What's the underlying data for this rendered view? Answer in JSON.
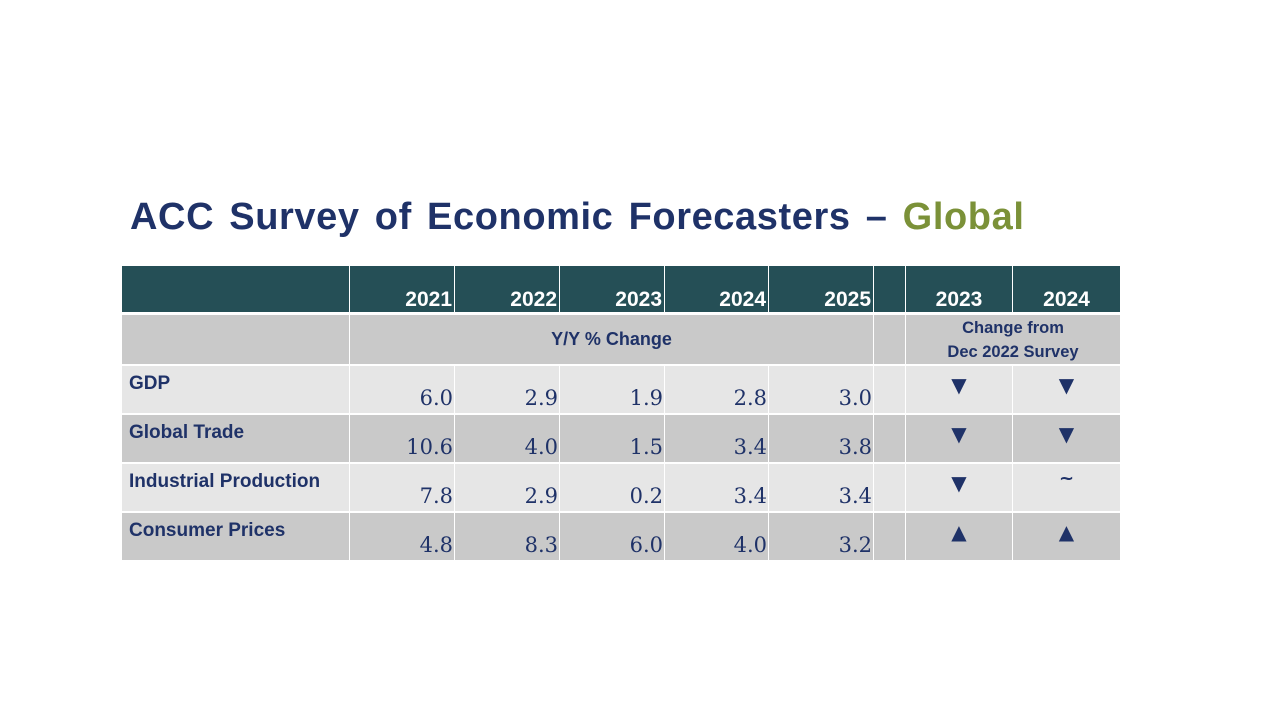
{
  "title": {
    "main": "ACC Survey of Economic Forecasters – ",
    "accent": "Global"
  },
  "colors": {
    "title": "#1f3268",
    "accent": "#7b9138",
    "header_bg": "#254f56",
    "row_light": "#e6e6e6",
    "row_dark": "#c9c9c9"
  },
  "table": {
    "years": [
      "2021",
      "2022",
      "2023",
      "2024",
      "2025"
    ],
    "change_years": [
      "2023",
      "2024"
    ],
    "yoy_label": "Y/Y % Change",
    "change_label_line1": "Change from",
    "change_label_line2": "Dec 2022 Survey",
    "rows": [
      {
        "label": "GDP",
        "values": [
          "6.0",
          "2.9",
          "1.9",
          "2.8",
          "3.0"
        ],
        "changes": [
          "down-triangle-icon",
          "down-triangle-icon"
        ],
        "change_glyphs": [
          "▼",
          "▼"
        ]
      },
      {
        "label": "Global Trade",
        "values": [
          "10.6",
          "4.0",
          "1.5",
          "3.4",
          "3.8"
        ],
        "changes": [
          "down-triangle-icon",
          "down-triangle-icon"
        ],
        "change_glyphs": [
          "▼",
          "▼"
        ]
      },
      {
        "label": "Industrial Production",
        "values": [
          "7.8",
          "2.9",
          "0.2",
          "3.4",
          "3.4"
        ],
        "changes": [
          "down-triangle-icon",
          "tilde-icon"
        ],
        "change_glyphs": [
          "▼",
          "~"
        ]
      },
      {
        "label": "Consumer Prices",
        "values": [
          "4.8",
          "8.3",
          "6.0",
          "4.0",
          "3.2"
        ],
        "changes": [
          "up-triangle-icon",
          "up-triangle-icon"
        ],
        "change_glyphs": [
          "▲",
          "▲"
        ]
      }
    ]
  }
}
